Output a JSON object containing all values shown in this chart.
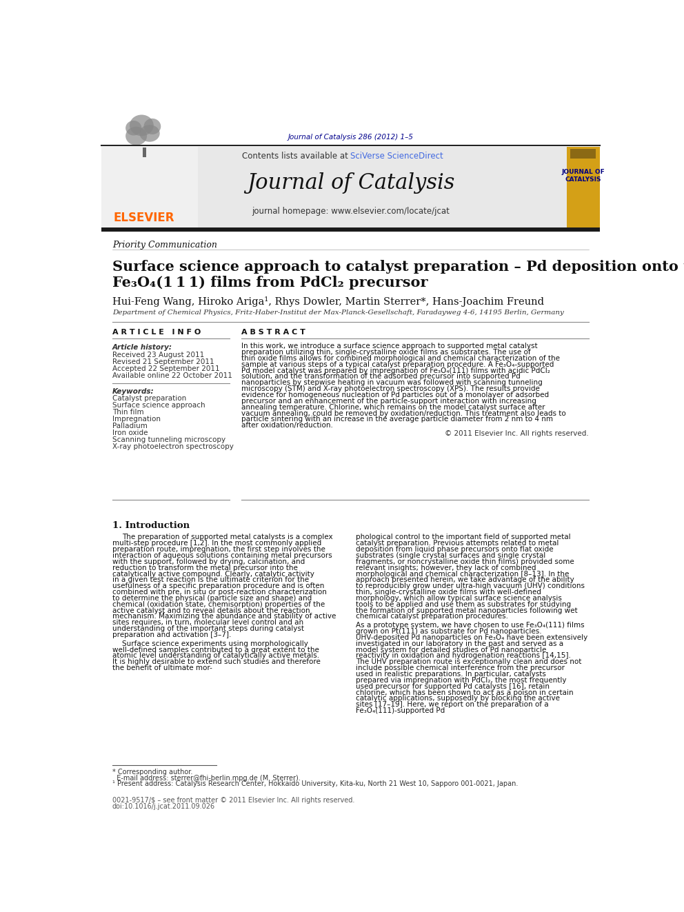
{
  "page_bg": "#ffffff",
  "header_journal_ref": "Journal of Catalysis 286 (2012) 1–5",
  "header_journal_ref_color": "#00008B",
  "journal_name": "Journal of Catalysis",
  "journal_homepage": "journal homepage: www.elsevier.com/locate/jcat",
  "contents_text": "Contents lists available at SciVerse ScienceDirect",
  "sciverse_color": "#4169E1",
  "header_bg": "#E8E8E8",
  "priority_label": "Priority Communication",
  "article_title_line1": "Surface science approach to catalyst preparation – Pd deposition onto thin",
  "article_title_line2": "Fe₃O₄(1 1 1) films from PdCl₂ precursor",
  "authors": "Hui-Feng Wang, Hiroko Ariga¹, Rhys Dowler, Martin Sterrer*, Hans-Joachim Freund",
  "affiliation": "Department of Chemical Physics, Fritz-Haber-Institut der Max-Planck-Gesellschaft, Faradayweg 4-6, 14195 Berlin, Germany",
  "article_info_header": "A R T I C L E   I N F O",
  "abstract_header": "A B S T R A C T",
  "article_history_label": "Article history:",
  "received": "Received 23 August 2011",
  "revised": "Revised 21 September 2011",
  "accepted": "Accepted 22 September 2011",
  "available_online": "Available online 22 October 2011",
  "keywords_label": "Keywords:",
  "keywords": [
    "Catalyst preparation",
    "Surface science approach",
    "Thin film",
    "Impregnation",
    "Palladium",
    "Iron oxide",
    "Scanning tunneling microscopy",
    "X-ray photoelectron spectroscopy"
  ],
  "abstract_text": "In this work, we introduce a surface science approach to supported metal catalyst preparation utilizing thin, single-crystalline oxide films as substrates. The use of thin oxide films allows for combined morphological and chemical characterization of the sample at various steps of a typical catalyst preparation procedure. A Fe₃O₄-supported Pd model catalyst was prepared by impregnation of Fe₃O₄(111) films with acidic PdCl₂ solution, and the transformation of the adsorbed precursor into supported Pd nanoparticles by stepwise heating in vacuum was followed with scanning tunneling microscopy (STM) and X-ray photoelectron spectroscopy (XPS). The results provide evidence for homogeneous nucleation of Pd particles out of a monolayer of adsorbed precursor and an enhancement of the particle-support interaction with increasing annealing temperature. Chlorine, which remains on the model catalyst surface after vacuum annealing, could be removed by oxidation/reduction. This treatment also leads to particle sintering with an increase in the average particle diameter from 2 nm to 4 nm after oxidation/reduction.",
  "copyright": "© 2011 Elsevier Inc. All rights reserved.",
  "intro_section": "1. Introduction",
  "intro_para1": "The preparation of supported metal catalysts is a complex multi-step procedure [1,2]. In the most commonly applied preparation route, impregnation, the first step involves the interaction of aqueous solutions containing metal precursors with the support, followed by drying, calcination, and reduction to transform the metal precursor into the catalytically active compound. Clearly, catalytic activity in a given test reaction is the ultimate criterion for the usefulness of a specific preparation procedure and is often combined with pre, in situ or post-reaction characterization to determine the physical (particle size and shape) and chemical (oxidation state, chemisorption) properties of the active catalyst and to reveal details about the reaction mechanism. Maximizing the abundance and stability of active sites requires, in turn, molecular level control and an understanding of the important steps during catalyst preparation and activation [3–7].",
  "intro_para2": "Surface science experiments using morphologically well-defined samples contributed to a great extent to the atomic level understanding of catalytically active metals. It is highly desirable to extend such studies and therefore the benefit of ultimate mor-",
  "right_para1": "phological control to the important field of supported metal catalyst preparation. Previous attempts related to metal deposition from liquid phase precursors onto flat oxide substrates (single crystal surfaces and single crystal fragments, or noncrystalline oxide thin films) provided some relevant insights; however, they lack of combined morphological and chemical characterization [8–13]. In the approach presented herein, we take advantage of the ability to reproducibly grow under ultra-high vacuum (UHV) conditions thin, single-crystalline oxide films with well-defined morphology, which allow typical surface science analysis tools to be applied and use them as substrates for studying the formation of supported metal nanoparticles following wet chemical catalyst preparation procedures.",
  "right_para2": "As a prototype system, we have chosen to use Fe₃O₄(111) films grown on Pt(111) as substrate for Pd nanoparticles. UHV-deposited Pd nanoparticles on Fe₃O₄ have been extensively investigated in our laboratory in the past and served as a model system for detailed studies of Pd nanoparticle reactivity in oxidation and hydrogenation reactions [14,15]. The UHV preparation route is exceptionally clean and does not include possible chemical interference from the precursor used in realistic preparations. In particular, catalysts prepared via impregnation with PdCl₂, the most frequently used precursor for supported Pd catalysts [16], retain chlorine, which has been shown to act as a poison in certain catalytic applications, supposedly by blocking the active sites [17–19]. Here, we report on the preparation of a Fe₃O₄(111)-supported Pd",
  "footnote_star": "* Corresponding author.",
  "footnote_email": "  E-mail address: sterrer@fhi-berlin.mpg.de (M. Sterrer).",
  "footnote_1": "¹ Present address: Catalysis Research Center, Hokkaido University, Kita-ku, North 21 West 10, Sapporo 001-0021, Japan.",
  "bottom_line1": "0021-9517/$ – see front matter © 2011 Elsevier Inc. All rights reserved.",
  "bottom_line2": "doi:10.1016/j.jcat.2011.09.026",
  "elsevier_color": "#FF6600",
  "journal_cover_bg": "#D4A017",
  "journal_cover_text_color": "#000080"
}
